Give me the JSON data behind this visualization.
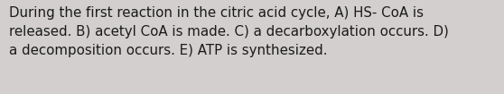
{
  "text": "During the first reaction in the citric acid cycle, A) HS- CoA is\nreleased. B) acetyl CoA is made. C) a decarboxylation occurs. D)\na decomposition occurs. E) ATP is synthesized.",
  "background_color": "#d3cfcf",
  "text_color": "#1a1a1a",
  "font_size": 10.8,
  "fig_width": 5.58,
  "fig_height": 1.05,
  "dpi": 100
}
